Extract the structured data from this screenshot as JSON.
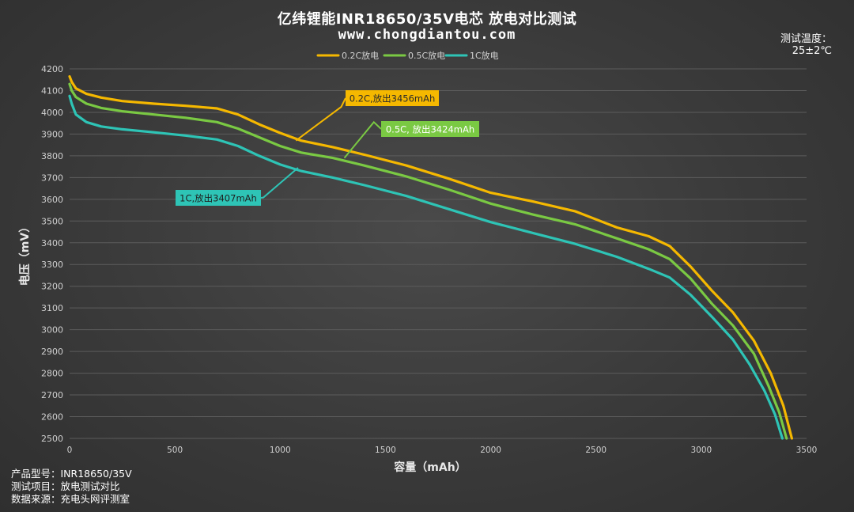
{
  "header": {
    "title": "亿纬锂能INR18650/35V电芯 放电对比测试",
    "website": "www.chongdiantou.com",
    "temp_label": "测试温度：",
    "temp_value": "25±2℃"
  },
  "footer": {
    "line1": "产品型号：INR18650/35V",
    "line2": "测试项目：放电测试对比",
    "line3": "数据来源：充电头网评测室"
  },
  "chart_data": {
    "type": "line",
    "title": "亿纬锂能INR18650/35V电芯 放电对比测试",
    "xlabel": "容量（mAh）",
    "ylabel": "电压（mV）",
    "xlim": [
      0,
      3500
    ],
    "ylim": [
      2500,
      4200
    ],
    "xticks": [
      0,
      500,
      1000,
      1500,
      2000,
      2500,
      3000,
      3500
    ],
    "yticks": [
      2500,
      2600,
      2700,
      2800,
      2900,
      3000,
      3100,
      3200,
      3300,
      3400,
      3500,
      3600,
      3700,
      3800,
      3900,
      4000,
      4100,
      4200
    ],
    "grid": true,
    "legend_position": "top-center",
    "series": [
      {
        "name": "0.2C放电",
        "color": "#f5b800",
        "annotation": "0.2C,放出3456mAh",
        "points": [
          [
            0,
            4165
          ],
          [
            10,
            4140
          ],
          [
            30,
            4110
          ],
          [
            80,
            4085
          ],
          [
            150,
            4068
          ],
          [
            250,
            4052
          ],
          [
            400,
            4040
          ],
          [
            550,
            4030
          ],
          [
            700,
            4018
          ],
          [
            800,
            3990
          ],
          [
            900,
            3945
          ],
          [
            1000,
            3905
          ],
          [
            1100,
            3870
          ],
          [
            1250,
            3840
          ],
          [
            1400,
            3805
          ],
          [
            1600,
            3755
          ],
          [
            1800,
            3695
          ],
          [
            2000,
            3630
          ],
          [
            2200,
            3590
          ],
          [
            2400,
            3545
          ],
          [
            2600,
            3470
          ],
          [
            2750,
            3430
          ],
          [
            2850,
            3385
          ],
          [
            2950,
            3290
          ],
          [
            3050,
            3180
          ],
          [
            3150,
            3080
          ],
          [
            3250,
            2950
          ],
          [
            3330,
            2800
          ],
          [
            3390,
            2650
          ],
          [
            3430,
            2500
          ]
        ]
      },
      {
        "name": "0.5C放电",
        "color": "#7ac943",
        "annotation": "0.5C, 放出3424mAh",
        "points": [
          [
            0,
            4130
          ],
          [
            10,
            4100
          ],
          [
            30,
            4070
          ],
          [
            80,
            4040
          ],
          [
            150,
            4020
          ],
          [
            250,
            4005
          ],
          [
            400,
            3990
          ],
          [
            550,
            3975
          ],
          [
            700,
            3955
          ],
          [
            800,
            3925
          ],
          [
            900,
            3885
          ],
          [
            1000,
            3845
          ],
          [
            1100,
            3815
          ],
          [
            1250,
            3790
          ],
          [
            1400,
            3755
          ],
          [
            1600,
            3705
          ],
          [
            1800,
            3645
          ],
          [
            2000,
            3580
          ],
          [
            2200,
            3530
          ],
          [
            2400,
            3485
          ],
          [
            2600,
            3420
          ],
          [
            2750,
            3370
          ],
          [
            2850,
            3325
          ],
          [
            2950,
            3235
          ],
          [
            3050,
            3120
          ],
          [
            3150,
            3020
          ],
          [
            3250,
            2890
          ],
          [
            3320,
            2740
          ],
          [
            3370,
            2620
          ],
          [
            3405,
            2500
          ]
        ]
      },
      {
        "name": "1C放电",
        "color": "#2ec4b6",
        "annotation": "1C,放出3407mAh",
        "points": [
          [
            0,
            4075
          ],
          [
            10,
            4040
          ],
          [
            30,
            3990
          ],
          [
            80,
            3955
          ],
          [
            150,
            3935
          ],
          [
            250,
            3922
          ],
          [
            400,
            3908
          ],
          [
            550,
            3893
          ],
          [
            700,
            3875
          ],
          [
            800,
            3845
          ],
          [
            900,
            3800
          ],
          [
            1000,
            3760
          ],
          [
            1100,
            3730
          ],
          [
            1250,
            3700
          ],
          [
            1400,
            3665
          ],
          [
            1600,
            3615
          ],
          [
            1800,
            3555
          ],
          [
            2000,
            3495
          ],
          [
            2200,
            3445
          ],
          [
            2400,
            3395
          ],
          [
            2600,
            3335
          ],
          [
            2750,
            3280
          ],
          [
            2850,
            3240
          ],
          [
            2950,
            3160
          ],
          [
            3050,
            3060
          ],
          [
            3150,
            2955
          ],
          [
            3230,
            2840
          ],
          [
            3300,
            2720
          ],
          [
            3350,
            2610
          ],
          [
            3385,
            2500
          ]
        ]
      }
    ]
  }
}
